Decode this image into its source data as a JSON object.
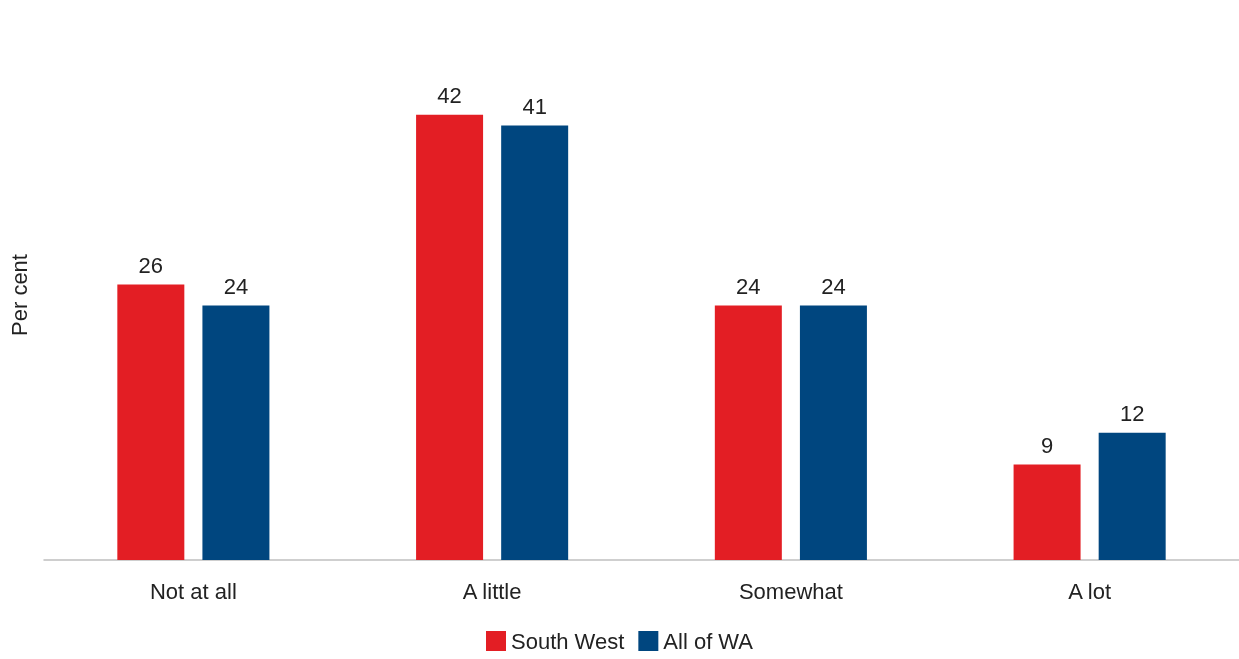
{
  "chart_data": {
    "type": "bar",
    "ylabel": "Per cent",
    "categories": [
      "Not at all",
      "A little",
      "Somewhat",
      "A lot"
    ],
    "series": [
      {
        "name": "South West",
        "color": "#e31e24",
        "values": [
          26,
          42,
          24,
          9
        ]
      },
      {
        "name": "All of WA",
        "color": "#00467f",
        "values": [
          24,
          41,
          24,
          12
        ]
      }
    ],
    "data_labels": true,
    "legend": "bottom",
    "grid": false
  }
}
